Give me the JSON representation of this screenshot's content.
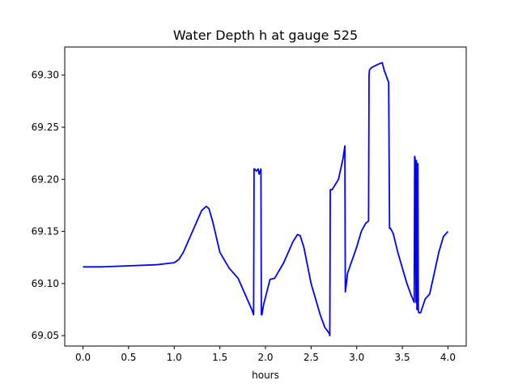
{
  "chart_data": {
    "type": "line",
    "title": "Water Depth h at gauge 525",
    "xlabel": "hours",
    "ylabel": "",
    "xlim": [
      -0.2,
      4.2
    ],
    "ylim": [
      69.04,
      69.327
    ],
    "x_ticks": [
      0.0,
      0.5,
      1.0,
      1.5,
      2.0,
      2.5,
      3.0,
      3.5,
      4.0
    ],
    "x_tick_labels": [
      "0.0",
      "0.5",
      "1.0",
      "1.5",
      "2.0",
      "2.5",
      "3.0",
      "3.5",
      "4.0"
    ],
    "y_ticks": [
      69.05,
      69.1,
      69.15,
      69.2,
      69.25,
      69.3
    ],
    "y_tick_labels": [
      "69.05",
      "69.10",
      "69.15",
      "69.20",
      "69.25",
      "69.30"
    ],
    "grid": false,
    "line_color": "#0000ff",
    "series": [
      {
        "x": [
          0.0,
          0.2,
          0.5,
          0.8,
          1.0,
          1.05,
          1.1,
          1.2,
          1.3,
          1.35,
          1.38,
          1.42,
          1.5,
          1.6,
          1.7,
          1.75,
          1.8,
          1.85,
          1.87,
          1.875,
          1.88,
          1.9,
          1.92,
          1.93,
          1.95,
          1.955,
          1.96,
          1.98,
          2.05,
          2.1,
          2.2,
          2.3,
          2.35,
          2.38,
          2.42,
          2.5,
          2.6,
          2.65,
          2.7,
          2.705,
          2.71,
          2.73,
          2.8,
          2.85,
          2.87,
          2.875,
          2.88,
          2.9,
          3.0,
          3.05,
          3.1,
          3.13,
          3.135,
          3.14,
          3.16,
          3.2,
          3.25,
          3.28,
          3.3,
          3.35,
          3.36,
          3.365,
          3.37,
          3.4,
          3.45,
          3.5,
          3.55,
          3.6,
          3.63,
          3.635,
          3.64,
          3.65,
          3.655,
          3.66,
          3.67,
          3.675,
          3.68,
          3.7,
          3.75,
          3.8,
          3.85,
          3.9,
          3.95,
          4.0
        ],
        "y": [
          69.116,
          69.116,
          69.117,
          69.118,
          69.12,
          69.123,
          69.13,
          69.15,
          69.17,
          69.174,
          69.172,
          69.16,
          69.13,
          69.115,
          69.105,
          69.095,
          69.085,
          69.075,
          69.07,
          69.21,
          69.21,
          69.208,
          69.21,
          69.205,
          69.21,
          69.07,
          69.07,
          69.08,
          69.104,
          69.105,
          69.12,
          69.14,
          69.147,
          69.146,
          69.135,
          69.1,
          69.07,
          69.058,
          69.052,
          69.05,
          69.19,
          69.19,
          69.2,
          69.22,
          69.232,
          69.092,
          69.095,
          69.11,
          69.135,
          69.15,
          69.158,
          69.16,
          69.3,
          69.305,
          69.307,
          69.309,
          69.311,
          69.312,
          69.305,
          69.293,
          69.153,
          69.153,
          69.153,
          69.148,
          69.13,
          69.115,
          69.1,
          69.088,
          69.082,
          69.222,
          69.22,
          69.082,
          69.218,
          69.075,
          69.215,
          69.075,
          69.072,
          69.072,
          69.085,
          69.09,
          69.11,
          69.13,
          69.145,
          69.15
        ]
      }
    ]
  }
}
